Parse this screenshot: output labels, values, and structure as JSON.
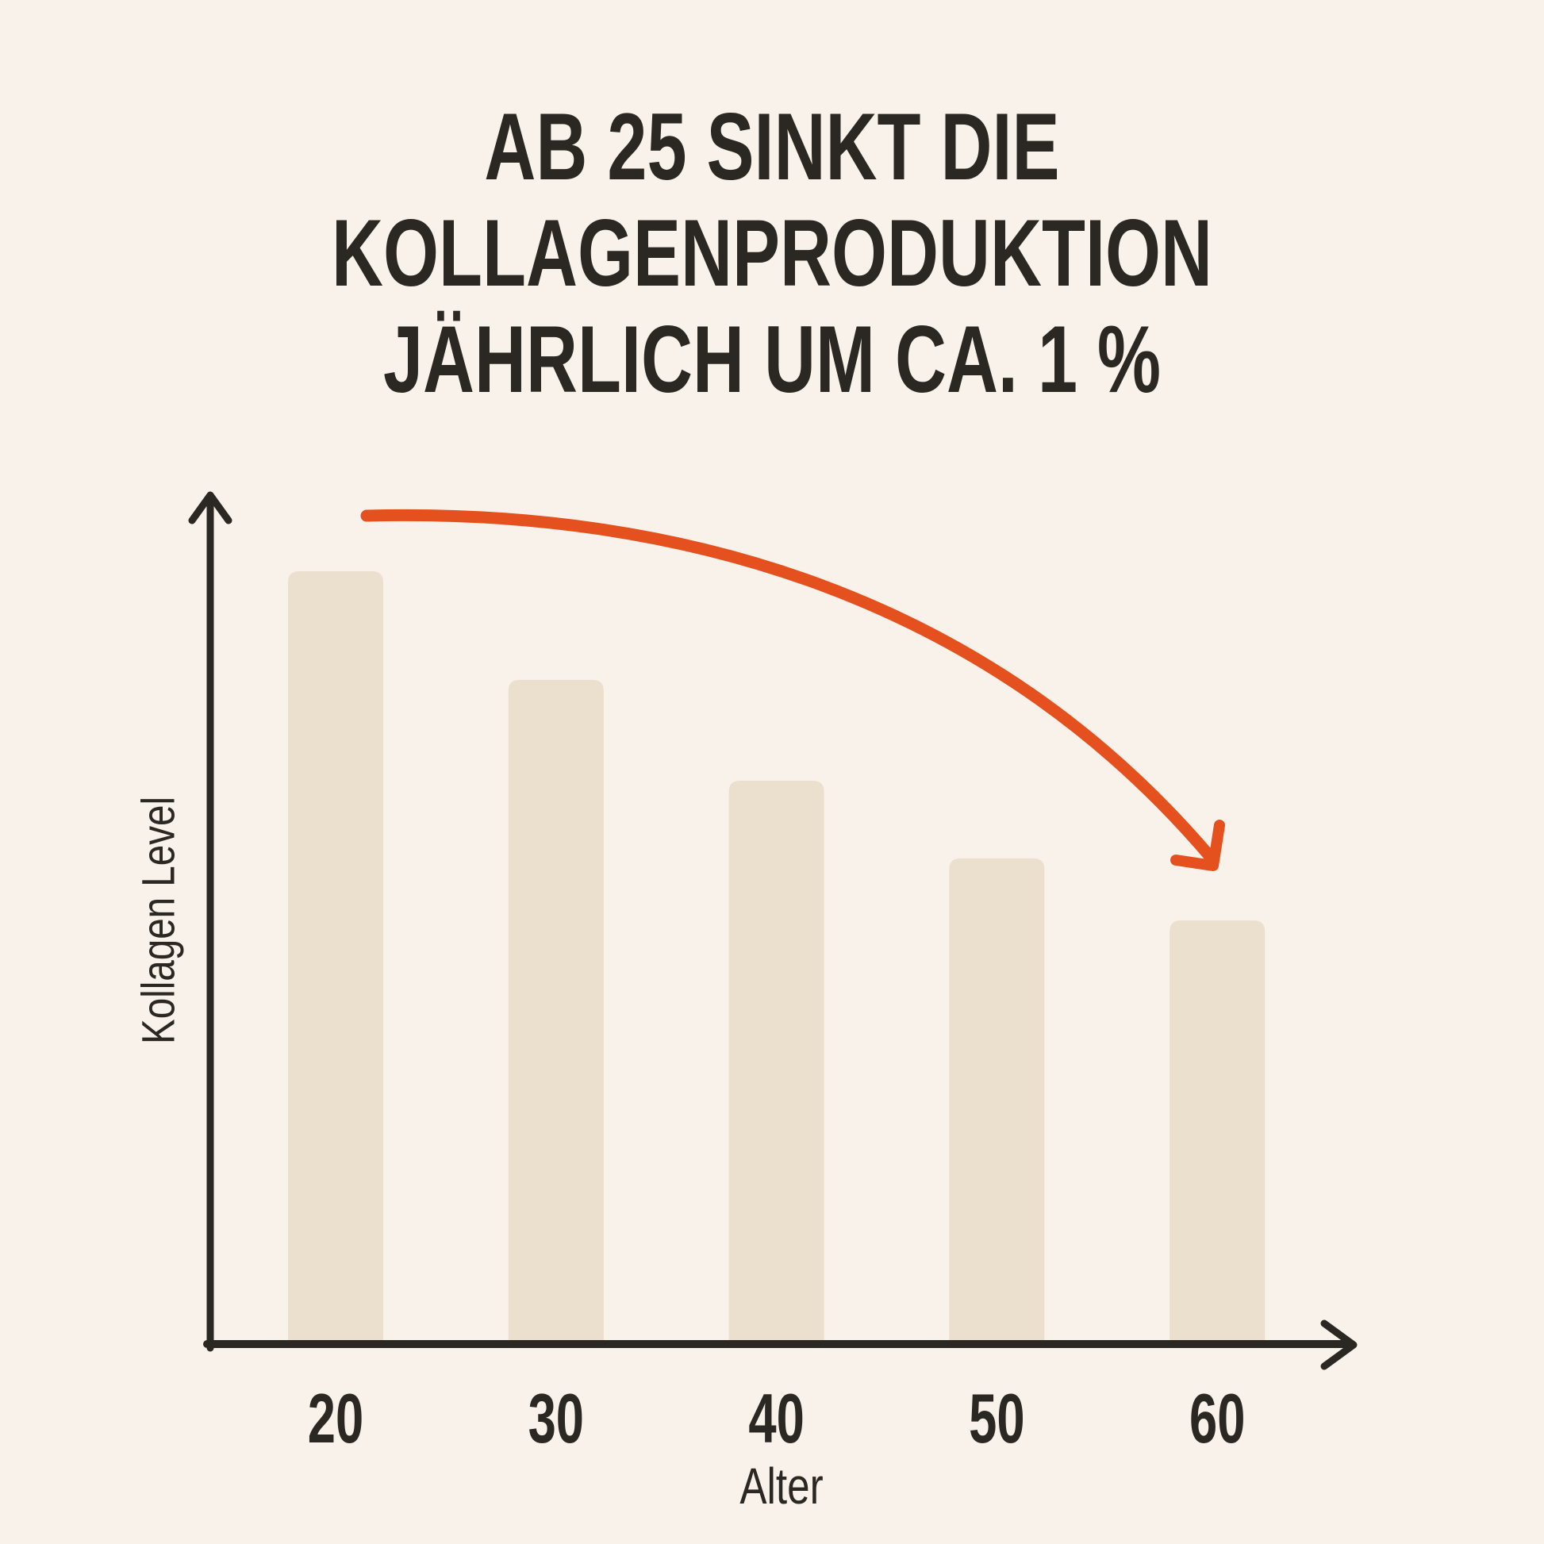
{
  "title": {
    "lines": [
      "AB 25 SINKT DIE",
      "KOLLAGENPRODUKTION",
      "JÄHRLICH UM CA. 1 %"
    ]
  },
  "chart_data": {
    "type": "bar",
    "categories": [
      "20",
      "30",
      "40",
      "50",
      "60"
    ],
    "values": [
      100,
      86,
      73,
      63,
      55
    ],
    "values_note": "relative bar heights; y axis shows no numeric labels",
    "title": "AB 25 SINKT DIE KOLLAGENPRODUKTION JÄHRLICH UM CA. 1 %",
    "xlabel": "Alter",
    "ylabel": "Kollagen Level",
    "ylim": [
      0,
      110
    ],
    "grid": false,
    "legend": false,
    "annotation": {
      "shape": "curved-arrow",
      "direction": "down",
      "from_category": "20",
      "to_category": "60",
      "color": "#e4511e"
    }
  },
  "colors": {
    "background": "#f9f2ea",
    "bar": "#ebdfcd",
    "accent": "#e4511e",
    "ink": "#2b2823"
  }
}
